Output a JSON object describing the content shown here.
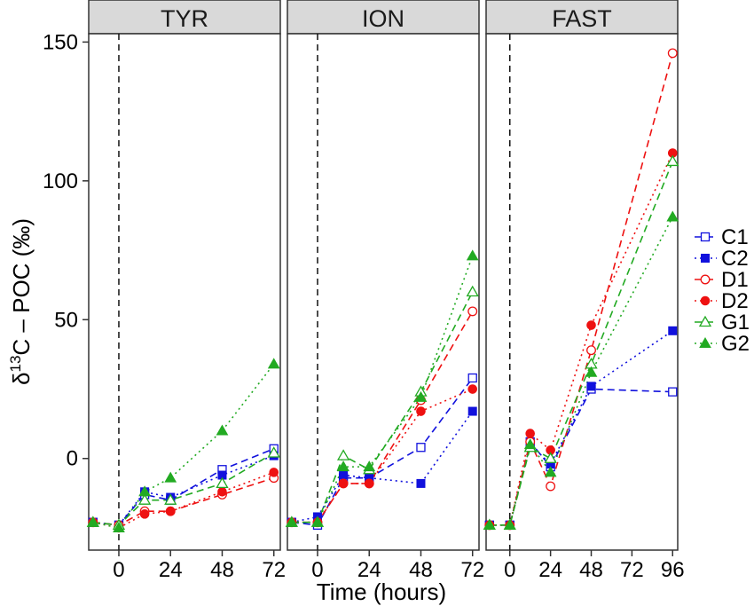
{
  "chart_data": {
    "type": "line",
    "facets": [
      "TYR",
      "ION",
      "FAST"
    ],
    "xlabel": "Time (hours)",
    "ylabel": "δ13C – POC (‰)",
    "ylabel_parts": {
      "pre": "δ",
      "sup": "13",
      "post": "C – POC (‰)"
    },
    "ylim": [
      -33,
      153
    ],
    "yticks": [
      0,
      50,
      100,
      150
    ],
    "xlims": {
      "TYR": [
        -14,
        75
      ],
      "ION": [
        -14,
        75
      ],
      "FAST": [
        -14,
        99
      ]
    },
    "xticks": {
      "TYR": [
        0,
        24,
        48,
        72
      ],
      "ION": [
        0,
        24,
        48,
        72
      ],
      "FAST": [
        0,
        24,
        48,
        72,
        96
      ]
    },
    "vline_x": 0,
    "legend_position": "right",
    "series": [
      {
        "name": "C1",
        "color": "#1111dd",
        "marker": "square-open",
        "dash": "dashed",
        "data": {
          "TYR": [
            [
              -12,
              -23
            ],
            [
              0,
              -24
            ],
            [
              12,
              -13
            ],
            [
              24,
              -15
            ],
            [
              48,
              -4
            ],
            [
              72,
              3.5
            ]
          ],
          "ION": [
            [
              -12,
              -23
            ],
            [
              0,
              -24
            ],
            [
              12,
              -7
            ],
            [
              24,
              -7
            ],
            [
              48,
              4
            ],
            [
              72,
              29
            ]
          ],
          "FAST": [
            [
              -12,
              -24
            ],
            [
              0,
              -24
            ],
            [
              12,
              6
            ],
            [
              24,
              -3
            ],
            [
              48,
              25
            ],
            [
              96,
              24
            ]
          ]
        }
      },
      {
        "name": "C2",
        "color": "#1111dd",
        "marker": "square-filled",
        "dash": "dotted",
        "data": {
          "TYR": [
            [
              -12,
              -23
            ],
            [
              0,
              -24
            ],
            [
              12,
              -12
            ],
            [
              24,
              -14
            ],
            [
              48,
              -6
            ],
            [
              72,
              1
            ]
          ],
          "ION": [
            [
              -12,
              -23
            ],
            [
              0,
              -21
            ],
            [
              12,
              -6
            ],
            [
              24,
              -7
            ],
            [
              48,
              -9
            ],
            [
              72,
              17
            ]
          ],
          "FAST": [
            [
              -12,
              -24
            ],
            [
              0,
              -24
            ],
            [
              12,
              5
            ],
            [
              24,
              -2
            ],
            [
              48,
              26
            ],
            [
              96,
              46
            ]
          ]
        }
      },
      {
        "name": "D1",
        "color": "#ee1111",
        "marker": "circle-open",
        "dash": "dashed",
        "data": {
          "TYR": [
            [
              -12,
              -23
            ],
            [
              0,
              -24
            ],
            [
              12,
              -19
            ],
            [
              24,
              -19
            ],
            [
              48,
              -13
            ],
            [
              72,
              -7
            ]
          ],
          "ION": [
            [
              -12,
              -23
            ],
            [
              0,
              -23
            ],
            [
              12,
              -9
            ],
            [
              24,
              -9
            ],
            [
              48,
              21
            ],
            [
              72,
              53
            ]
          ],
          "FAST": [
            [
              -12,
              -24
            ],
            [
              0,
              -24
            ],
            [
              12,
              6
            ],
            [
              24,
              -10
            ],
            [
              48,
              39
            ],
            [
              96,
              146
            ]
          ]
        }
      },
      {
        "name": "D2",
        "color": "#ee1111",
        "marker": "circle-filled",
        "dash": "dotted",
        "data": {
          "TYR": [
            [
              -12,
              -23
            ],
            [
              0,
              -25
            ],
            [
              12,
              -20
            ],
            [
              24,
              -19
            ],
            [
              48,
              -12
            ],
            [
              72,
              -5
            ]
          ],
          "ION": [
            [
              -12,
              -23
            ],
            [
              0,
              -23
            ],
            [
              12,
              -9
            ],
            [
              24,
              -9
            ],
            [
              48,
              17
            ],
            [
              72,
              25
            ]
          ],
          "FAST": [
            [
              -12,
              -24
            ],
            [
              0,
              -24
            ],
            [
              12,
              9
            ],
            [
              24,
              3
            ],
            [
              48,
              48
            ],
            [
              96,
              110
            ]
          ]
        }
      },
      {
        "name": "G1",
        "color": "#22aa22",
        "marker": "triangle-open",
        "dash": "dashed",
        "data": {
          "TYR": [
            [
              -12,
              -23
            ],
            [
              0,
              -24
            ],
            [
              12,
              -15
            ],
            [
              24,
              -15
            ],
            [
              48,
              -9
            ],
            [
              72,
              2
            ]
          ],
          "ION": [
            [
              -12,
              -23
            ],
            [
              0,
              -23
            ],
            [
              12,
              1
            ],
            [
              24,
              -4
            ],
            [
              48,
              24
            ],
            [
              72,
              60
            ]
          ],
          "FAST": [
            [
              -12,
              -24
            ],
            [
              0,
              -24
            ],
            [
              12,
              4
            ],
            [
              24,
              0
            ],
            [
              48,
              34
            ],
            [
              96,
              107
            ]
          ]
        }
      },
      {
        "name": "G2",
        "color": "#22aa22",
        "marker": "triangle-filled",
        "dash": "dotted",
        "data": {
          "TYR": [
            [
              -12,
              -23
            ],
            [
              0,
              -25
            ],
            [
              12,
              -12
            ],
            [
              24,
              -7
            ],
            [
              48,
              10
            ],
            [
              72,
              34
            ]
          ],
          "ION": [
            [
              -12,
              -23
            ],
            [
              0,
              -23
            ],
            [
              12,
              -3
            ],
            [
              24,
              -3
            ],
            [
              48,
              22
            ],
            [
              72,
              73
            ]
          ],
          "FAST": [
            [
              -12,
              -24
            ],
            [
              0,
              -24
            ],
            [
              12,
              5
            ],
            [
              24,
              -5
            ],
            [
              48,
              31
            ],
            [
              96,
              87
            ]
          ]
        }
      }
    ]
  }
}
